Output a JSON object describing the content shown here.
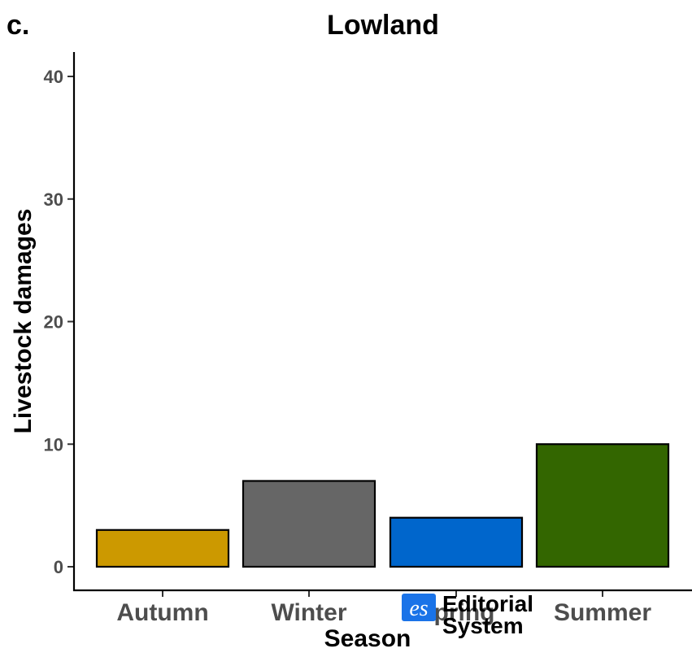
{
  "panel_label": "c.",
  "chart_data": {
    "type": "bar",
    "title": "Lowland",
    "xlabel": "Season",
    "ylabel": "Livestock damages",
    "categories": [
      "Autumn",
      "Winter",
      "Spring",
      "Summer"
    ],
    "values": [
      3,
      7,
      4,
      10
    ],
    "colors": [
      "#CC9900",
      "#666666",
      "#0066CC",
      "#336600"
    ],
    "ylim": [
      0,
      41
    ],
    "yticks": [
      0,
      10,
      20,
      30,
      40
    ],
    "grid": false,
    "legend": "none"
  },
  "watermark": {
    "logo_text": "es",
    "line1": "Editorial",
    "line2": "System"
  }
}
